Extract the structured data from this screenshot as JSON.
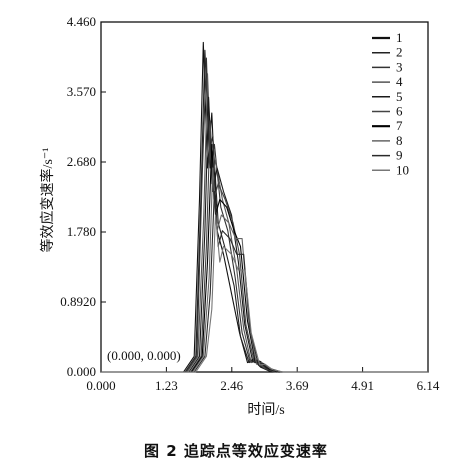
{
  "chart_data": {
    "type": "line",
    "title": "",
    "caption": "图 2    追踪点等效应变速率",
    "xlabel": "时间/s",
    "ylabel": "等效应变速率/s⁻¹",
    "xlim": [
      0,
      6.14
    ],
    "ylim": [
      0,
      4.46
    ],
    "x_ticks": [
      "0.000",
      "1.23",
      "2.46",
      "3.69",
      "4.91",
      "6.14"
    ],
    "y_ticks": [
      "0.000",
      "0.8920",
      "1.780",
      "2.680",
      "3.570",
      "4.460"
    ],
    "annotation": "(0.000, 0.000)",
    "grid": false,
    "legend_position": "top-right",
    "series": [
      {
        "name": "1",
        "x": [
          0,
          1.55,
          1.75,
          1.85,
          1.92,
          2.0,
          2.08,
          2.18,
          2.3,
          2.45,
          2.6,
          2.75,
          2.85,
          3.0,
          3.2,
          6.14
        ],
        "y": [
          0,
          0,
          0.2,
          2.2,
          4.2,
          2.6,
          3.3,
          1.8,
          1.5,
          1.0,
          0.5,
          0.12,
          0.16,
          0.06,
          0,
          0
        ]
      },
      {
        "name": "2",
        "x": [
          0,
          1.58,
          1.78,
          1.88,
          1.95,
          2.03,
          2.1,
          2.2,
          2.32,
          2.5,
          2.62,
          2.78,
          2.88,
          3.05,
          3.25,
          6.14
        ],
        "y": [
          0,
          0,
          0.2,
          2.3,
          4.1,
          2.8,
          3.0,
          1.9,
          1.6,
          1.1,
          0.45,
          0.12,
          0.15,
          0.05,
          0,
          0
        ]
      },
      {
        "name": "3",
        "x": [
          0,
          1.6,
          1.8,
          1.9,
          1.98,
          2.05,
          2.13,
          2.25,
          2.38,
          2.52,
          2.65,
          2.8,
          2.9,
          3.05,
          3.25,
          6.14
        ],
        "y": [
          0,
          0,
          0.2,
          2.5,
          4.0,
          2.6,
          2.9,
          2.1,
          1.8,
          1.2,
          0.5,
          0.13,
          0.16,
          0.05,
          0,
          0
        ]
      },
      {
        "name": "4",
        "x": [
          0,
          1.62,
          1.82,
          1.93,
          2.0,
          2.08,
          2.15,
          2.28,
          2.4,
          2.55,
          2.68,
          2.82,
          2.92,
          3.08,
          3.28,
          6.14
        ],
        "y": [
          0,
          0,
          0.2,
          2.0,
          3.8,
          2.4,
          2.7,
          2.2,
          1.9,
          1.3,
          0.55,
          0.12,
          0.14,
          0.05,
          0,
          0
        ]
      },
      {
        "name": "5",
        "x": [
          0,
          1.65,
          1.85,
          1.95,
          2.02,
          2.1,
          2.18,
          2.3,
          2.45,
          2.58,
          2.7,
          2.85,
          2.95,
          3.1,
          3.3,
          6.14
        ],
        "y": [
          0,
          0,
          0.2,
          1.8,
          3.5,
          2.3,
          2.6,
          2.3,
          2.0,
          1.4,
          0.6,
          0.13,
          0.15,
          0.05,
          0,
          0
        ]
      },
      {
        "name": "6",
        "x": [
          0,
          1.68,
          1.88,
          1.98,
          2.05,
          2.12,
          2.2,
          2.33,
          2.48,
          2.6,
          2.72,
          2.88,
          2.98,
          3.12,
          3.32,
          6.14
        ],
        "y": [
          0,
          0,
          0.2,
          1.6,
          3.2,
          2.2,
          2.4,
          2.2,
          1.9,
          1.5,
          0.6,
          0.12,
          0.14,
          0.05,
          0,
          0
        ]
      },
      {
        "name": "7",
        "x": [
          0,
          1.7,
          1.9,
          2.0,
          2.08,
          2.15,
          2.23,
          2.36,
          2.5,
          2.62,
          2.75,
          2.9,
          3.0,
          3.15,
          3.35,
          6.14
        ],
        "y": [
          0,
          0,
          0.2,
          1.4,
          2.9,
          2.0,
          2.2,
          2.1,
          1.8,
          1.6,
          0.65,
          0.12,
          0.13,
          0.04,
          0,
          0
        ]
      },
      {
        "name": "8",
        "x": [
          0,
          1.72,
          1.92,
          2.03,
          2.1,
          2.18,
          2.26,
          2.4,
          2.53,
          2.65,
          2.78,
          2.92,
          3.02,
          3.18,
          3.38,
          6.14
        ],
        "y": [
          0,
          0,
          0.2,
          1.2,
          2.6,
          1.8,
          2.0,
          1.9,
          1.7,
          1.7,
          0.6,
          0.1,
          0.12,
          0.04,
          0,
          0
        ]
      },
      {
        "name": "9",
        "x": [
          0,
          1.75,
          1.95,
          2.05,
          2.13,
          2.2,
          2.28,
          2.42,
          2.55,
          2.68,
          2.8,
          2.95,
          3.05,
          3.2,
          3.4,
          6.14
        ],
        "y": [
          0,
          0,
          0.2,
          1.0,
          2.3,
          1.6,
          1.8,
          1.7,
          1.5,
          1.5,
          0.55,
          0.1,
          0.11,
          0.04,
          0,
          0
        ]
      },
      {
        "name": "10",
        "x": [
          0,
          1.78,
          1.98,
          2.08,
          2.15,
          2.23,
          2.3,
          2.45,
          2.58,
          2.7,
          2.82,
          2.98,
          3.08,
          3.22,
          3.42,
          6.14
        ],
        "y": [
          0,
          0,
          0.2,
          0.8,
          2.0,
          1.4,
          1.6,
          1.5,
          1.3,
          1.3,
          0.5,
          0.09,
          0.1,
          0.03,
          0,
          0
        ]
      }
    ]
  }
}
